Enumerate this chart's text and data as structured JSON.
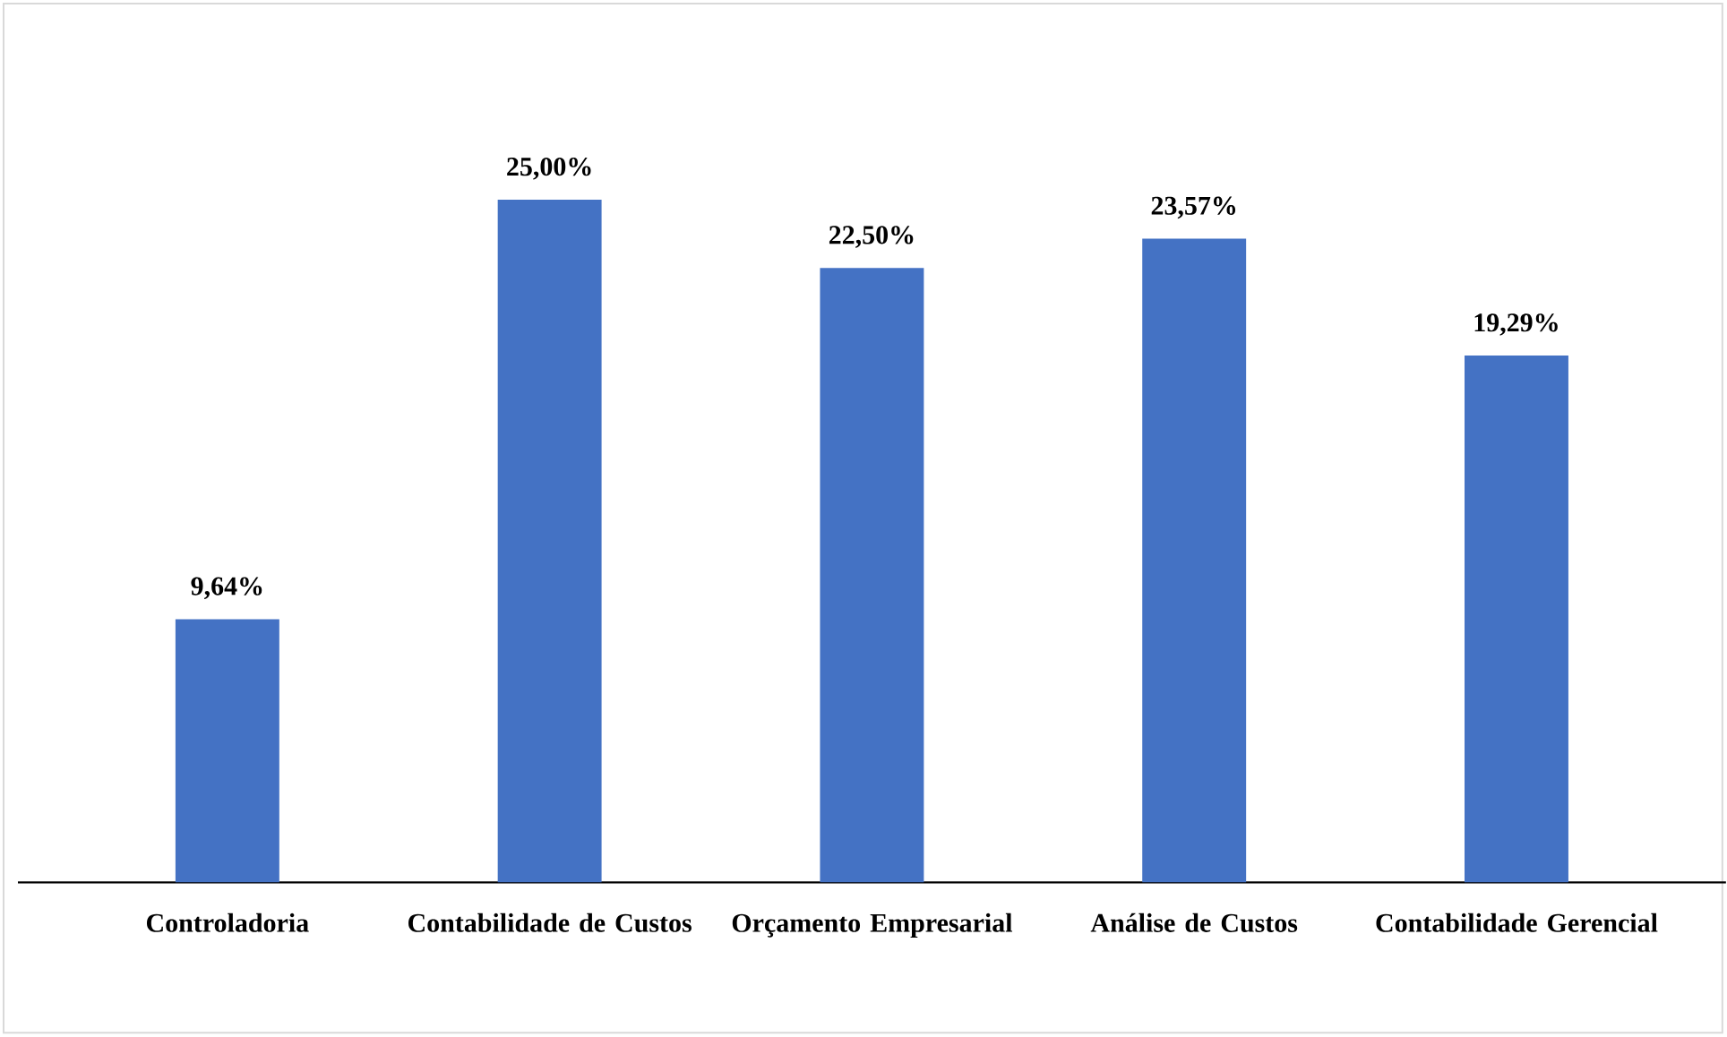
{
  "chart_data": {
    "type": "bar",
    "categories": [
      "Controladoria",
      "Contabilidade de Custos",
      "Orçamento Empresarial",
      "Análise de Custos",
      "Contabilidade Gerencial"
    ],
    "values": [
      9.64,
      25.0,
      22.5,
      23.57,
      19.29
    ],
    "value_labels": [
      "9,64%",
      "25,00%",
      "22,50%",
      "23,57%",
      "19,29%"
    ],
    "color": "#4472c4"
  }
}
